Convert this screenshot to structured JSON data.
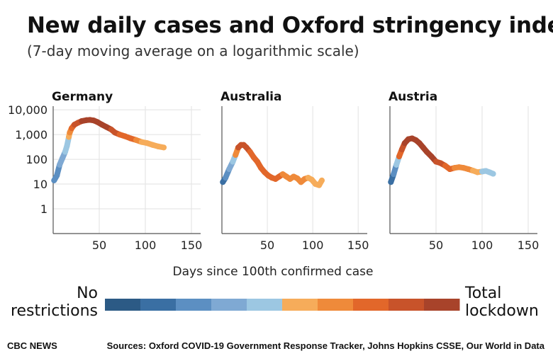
{
  "header": {
    "title": "New daily cases and Oxford stringency index",
    "subtitle": "(7-day moving average on a logarithmic scale)"
  },
  "footer": {
    "brand": "CBC NEWS",
    "sources": "Sources: Oxford COVID-19 Government Response Tracker, Johns Hopkins CSSE, Our World in Data"
  },
  "legend": {
    "low_label_line1": "No",
    "low_label_line2": "restrictions",
    "high_label_line1": "Total",
    "high_label_line2": "lockdown",
    "colors": [
      "#2c5a85",
      "#3a6fa3",
      "#5c8fc2",
      "#7fa9d3",
      "#9cc7e2",
      "#f6ac5a",
      "#ef8a3a",
      "#e2672a",
      "#c8532a",
      "#a8432a"
    ]
  },
  "chart_data": [
    {
      "type": "line",
      "title": "Germany",
      "xlabel": "Days since 100th confirmed case",
      "ylabel": "",
      "yscale": "log",
      "xlim": [
        0,
        160
      ],
      "ylim": [
        0.1,
        14000
      ],
      "xticks": [
        50,
        100,
        150
      ],
      "yticks": [
        1,
        10,
        100,
        1000,
        10000
      ],
      "ytick_labels": [
        "1",
        "10",
        "100",
        "1,000",
        "10,000"
      ],
      "points": [
        [
          1,
          14,
          2
        ],
        [
          4,
          22,
          2
        ],
        [
          7,
          60,
          3
        ],
        [
          10,
          110,
          3
        ],
        [
          13,
          200,
          4
        ],
        [
          15,
          350,
          4
        ],
        [
          17,
          800,
          5
        ],
        [
          18,
          1200,
          6
        ],
        [
          20,
          1800,
          7
        ],
        [
          23,
          2500,
          8
        ],
        [
          27,
          3000,
          8
        ],
        [
          31,
          3500,
          9
        ],
        [
          36,
          3800,
          9
        ],
        [
          40,
          3900,
          9
        ],
        [
          44,
          3700,
          9
        ],
        [
          48,
          3200,
          9
        ],
        [
          53,
          2500,
          9
        ],
        [
          58,
          2000,
          9
        ],
        [
          63,
          1600,
          8
        ],
        [
          67,
          1200,
          8
        ],
        [
          72,
          1000,
          7
        ],
        [
          78,
          850,
          7
        ],
        [
          84,
          700,
          7
        ],
        [
          90,
          600,
          6
        ],
        [
          96,
          500,
          5
        ],
        [
          102,
          450,
          5
        ],
        [
          108,
          380,
          5
        ],
        [
          114,
          330,
          5
        ],
        [
          120,
          300,
          5
        ]
      ]
    },
    {
      "type": "line",
      "title": "Australia",
      "xlabel": "Days since 100th confirmed case",
      "ylabel": "",
      "yscale": "log",
      "xlim": [
        0,
        160
      ],
      "ylim": [
        0.1,
        14000
      ],
      "xticks": [
        50,
        100,
        150
      ],
      "yticks": [
        1,
        10,
        100,
        1000,
        10000
      ],
      "ytick_labels": [
        "1",
        "10",
        "100",
        "1,000",
        "10,000"
      ],
      "points": [
        [
          1,
          12,
          1
        ],
        [
          4,
          18,
          2
        ],
        [
          8,
          40,
          3
        ],
        [
          12,
          80,
          4
        ],
        [
          15,
          150,
          6
        ],
        [
          18,
          300,
          8
        ],
        [
          21,
          380,
          8
        ],
        [
          24,
          380,
          8
        ],
        [
          27,
          300,
          8
        ],
        [
          31,
          200,
          7
        ],
        [
          35,
          120,
          7
        ],
        [
          39,
          80,
          7
        ],
        [
          43,
          45,
          7
        ],
        [
          47,
          30,
          7
        ],
        [
          51,
          22,
          7
        ],
        [
          55,
          18,
          7
        ],
        [
          59,
          16,
          7
        ],
        [
          63,
          20,
          7
        ],
        [
          67,
          25,
          6
        ],
        [
          71,
          20,
          6
        ],
        [
          75,
          16,
          6
        ],
        [
          79,
          20,
          6
        ],
        [
          83,
          17,
          6
        ],
        [
          87,
          12,
          6
        ],
        [
          91,
          16,
          6
        ],
        [
          95,
          18,
          5
        ],
        [
          99,
          15,
          5
        ],
        [
          103,
          10,
          5
        ],
        [
          107,
          9,
          5
        ],
        [
          110,
          14,
          5
        ]
      ]
    },
    {
      "type": "line",
      "title": "Austria",
      "xlabel": "Days since 100th confirmed case",
      "ylabel": "",
      "yscale": "log",
      "xlim": [
        0,
        160
      ],
      "ylim": [
        0.1,
        14000
      ],
      "xticks": [
        50,
        100,
        150
      ],
      "yticks": [
        1,
        10,
        100,
        1000,
        10000
      ],
      "ytick_labels": [
        "1",
        "10",
        "100",
        "1,000",
        "10,000"
      ],
      "points": [
        [
          1,
          12,
          1
        ],
        [
          4,
          25,
          2
        ],
        [
          7,
          60,
          4
        ],
        [
          10,
          130,
          7
        ],
        [
          13,
          250,
          8
        ],
        [
          16,
          450,
          9
        ],
        [
          20,
          650,
          9
        ],
        [
          24,
          700,
          9
        ],
        [
          28,
          600,
          9
        ],
        [
          32,
          450,
          9
        ],
        [
          36,
          300,
          9
        ],
        [
          40,
          200,
          9
        ],
        [
          45,
          130,
          9
        ],
        [
          50,
          80,
          8
        ],
        [
          55,
          70,
          8
        ],
        [
          60,
          55,
          7
        ],
        [
          65,
          40,
          7
        ],
        [
          70,
          45,
          6
        ],
        [
          75,
          48,
          6
        ],
        [
          80,
          45,
          6
        ],
        [
          85,
          40,
          6
        ],
        [
          90,
          35,
          5
        ],
        [
          95,
          30,
          5
        ],
        [
          100,
          32,
          4
        ],
        [
          104,
          34,
          4
        ],
        [
          108,
          30,
          4
        ],
        [
          112,
          26,
          4
        ]
      ]
    }
  ]
}
